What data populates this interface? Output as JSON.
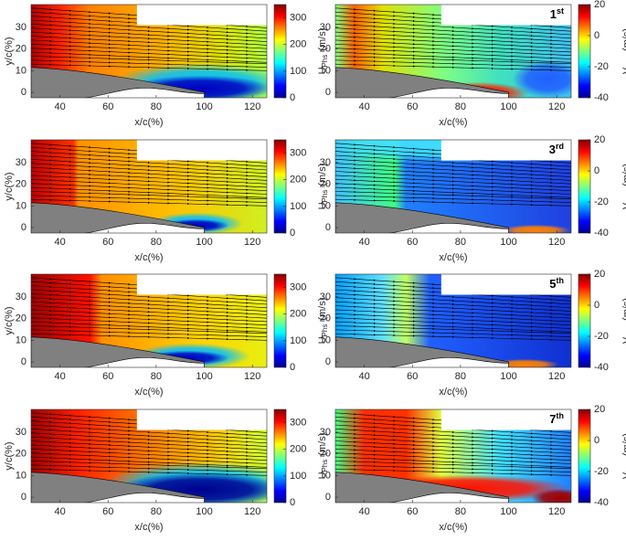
{
  "chart_data": [
    {
      "type": "contour",
      "xlabel": "x/c(%)",
      "ylabel": "y/c(%)",
      "xlim": [
        28,
        126
      ],
      "ylim": [
        -2.5,
        40.5
      ],
      "xticks": [
        40,
        60,
        80,
        100,
        120
      ],
      "yticks": [
        0,
        10,
        20,
        30
      ],
      "colorbar": {
        "label": "U",
        "label_sub": "Phs",
        "unit": "(m/s)",
        "lim": [
          0,
          350
        ],
        "ticks": [
          0,
          100,
          200,
          300
        ]
      }
    },
    {
      "type": "contour",
      "xlabel": "x/c(%)",
      "xlim": [
        28,
        126
      ],
      "ylim": [
        -2.5,
        40.5
      ],
      "xticks": [
        40,
        60,
        80,
        100,
        120
      ],
      "yticks": [
        0,
        10,
        20,
        30
      ],
      "colorbar": {
        "label": "V",
        "label_sub": "Phs",
        "unit": "(m/s)",
        "lim": [
          -40,
          20
        ],
        "ticks": [
          -40,
          -20,
          0,
          20
        ]
      },
      "annotation": "1",
      "annotation_sup": "st"
    },
    {
      "type": "contour",
      "xlabel": "x/c(%)",
      "ylabel": "y/c(%)",
      "xlim": [
        28,
        126
      ],
      "ylim": [
        -2.5,
        40.5
      ],
      "xticks": [
        40,
        60,
        80,
        100,
        120
      ],
      "yticks": [
        0,
        10,
        20,
        30
      ],
      "colorbar": {
        "label": "U",
        "label_sub": "Phs",
        "unit": "(m/s)",
        "lim": [
          0,
          350
        ],
        "ticks": [
          0,
          100,
          200,
          300
        ]
      }
    },
    {
      "type": "contour",
      "xlabel": "x/c(%)",
      "xlim": [
        28,
        126
      ],
      "ylim": [
        -2.5,
        40.5
      ],
      "xticks": [
        40,
        60,
        80,
        100,
        120
      ],
      "yticks": [
        0,
        10,
        20,
        30
      ],
      "colorbar": {
        "label": "V",
        "label_sub": "Phs",
        "unit": "(m/s)",
        "lim": [
          -40,
          20
        ],
        "ticks": [
          -40,
          -20,
          0,
          20
        ]
      },
      "annotation": "3",
      "annotation_sup": "rd"
    },
    {
      "type": "contour",
      "xlabel": "x/c(%)",
      "ylabel": "y/c(%)",
      "xlim": [
        28,
        126
      ],
      "ylim": [
        -2.5,
        40.5
      ],
      "xticks": [
        40,
        60,
        80,
        100,
        120
      ],
      "yticks": [
        0,
        10,
        20,
        30
      ],
      "colorbar": {
        "label": "U",
        "label_sub": "Phs",
        "unit": "(m/s)",
        "lim": [
          0,
          350
        ],
        "ticks": [
          0,
          100,
          200,
          300
        ]
      }
    },
    {
      "type": "contour",
      "xlabel": "x/c(%)",
      "xlim": [
        28,
        126
      ],
      "ylim": [
        -2.5,
        40.5
      ],
      "xticks": [
        40,
        60,
        80,
        100,
        120
      ],
      "yticks": [
        0,
        10,
        20,
        30
      ],
      "colorbar": {
        "label": "V",
        "label_sub": "Phs",
        "unit": "(m/s)",
        "lim": [
          -40,
          20
        ],
        "ticks": [
          -40,
          -20,
          0,
          20
        ]
      },
      "annotation": "5",
      "annotation_sup": "th"
    },
    {
      "type": "contour",
      "xlabel": "x/c(%)",
      "ylabel": "y/c(%)",
      "xlim": [
        28,
        126
      ],
      "ylim": [
        -2.5,
        40.5
      ],
      "xticks": [
        40,
        60,
        80,
        100,
        120
      ],
      "yticks": [
        0,
        10,
        20,
        30
      ],
      "colorbar": {
        "label": "U",
        "label_sub": "Phs",
        "unit": "(m/s)",
        "lim": [
          0,
          350
        ],
        "ticks": [
          0,
          100,
          200,
          300
        ]
      }
    },
    {
      "type": "contour",
      "xlabel": "x/c(%)",
      "xlim": [
        28,
        126
      ],
      "ylim": [
        -2.5,
        40.5
      ],
      "xticks": [
        40,
        60,
        80,
        100,
        120
      ],
      "yticks": [
        0,
        10,
        20,
        30
      ],
      "colorbar": {
        "label": "V",
        "label_sub": "Phs",
        "unit": "(m/s)",
        "lim": [
          -40,
          20
        ],
        "ticks": [
          -40,
          -20,
          0,
          20
        ]
      },
      "annotation": "7",
      "annotation_sup": "th"
    }
  ]
}
